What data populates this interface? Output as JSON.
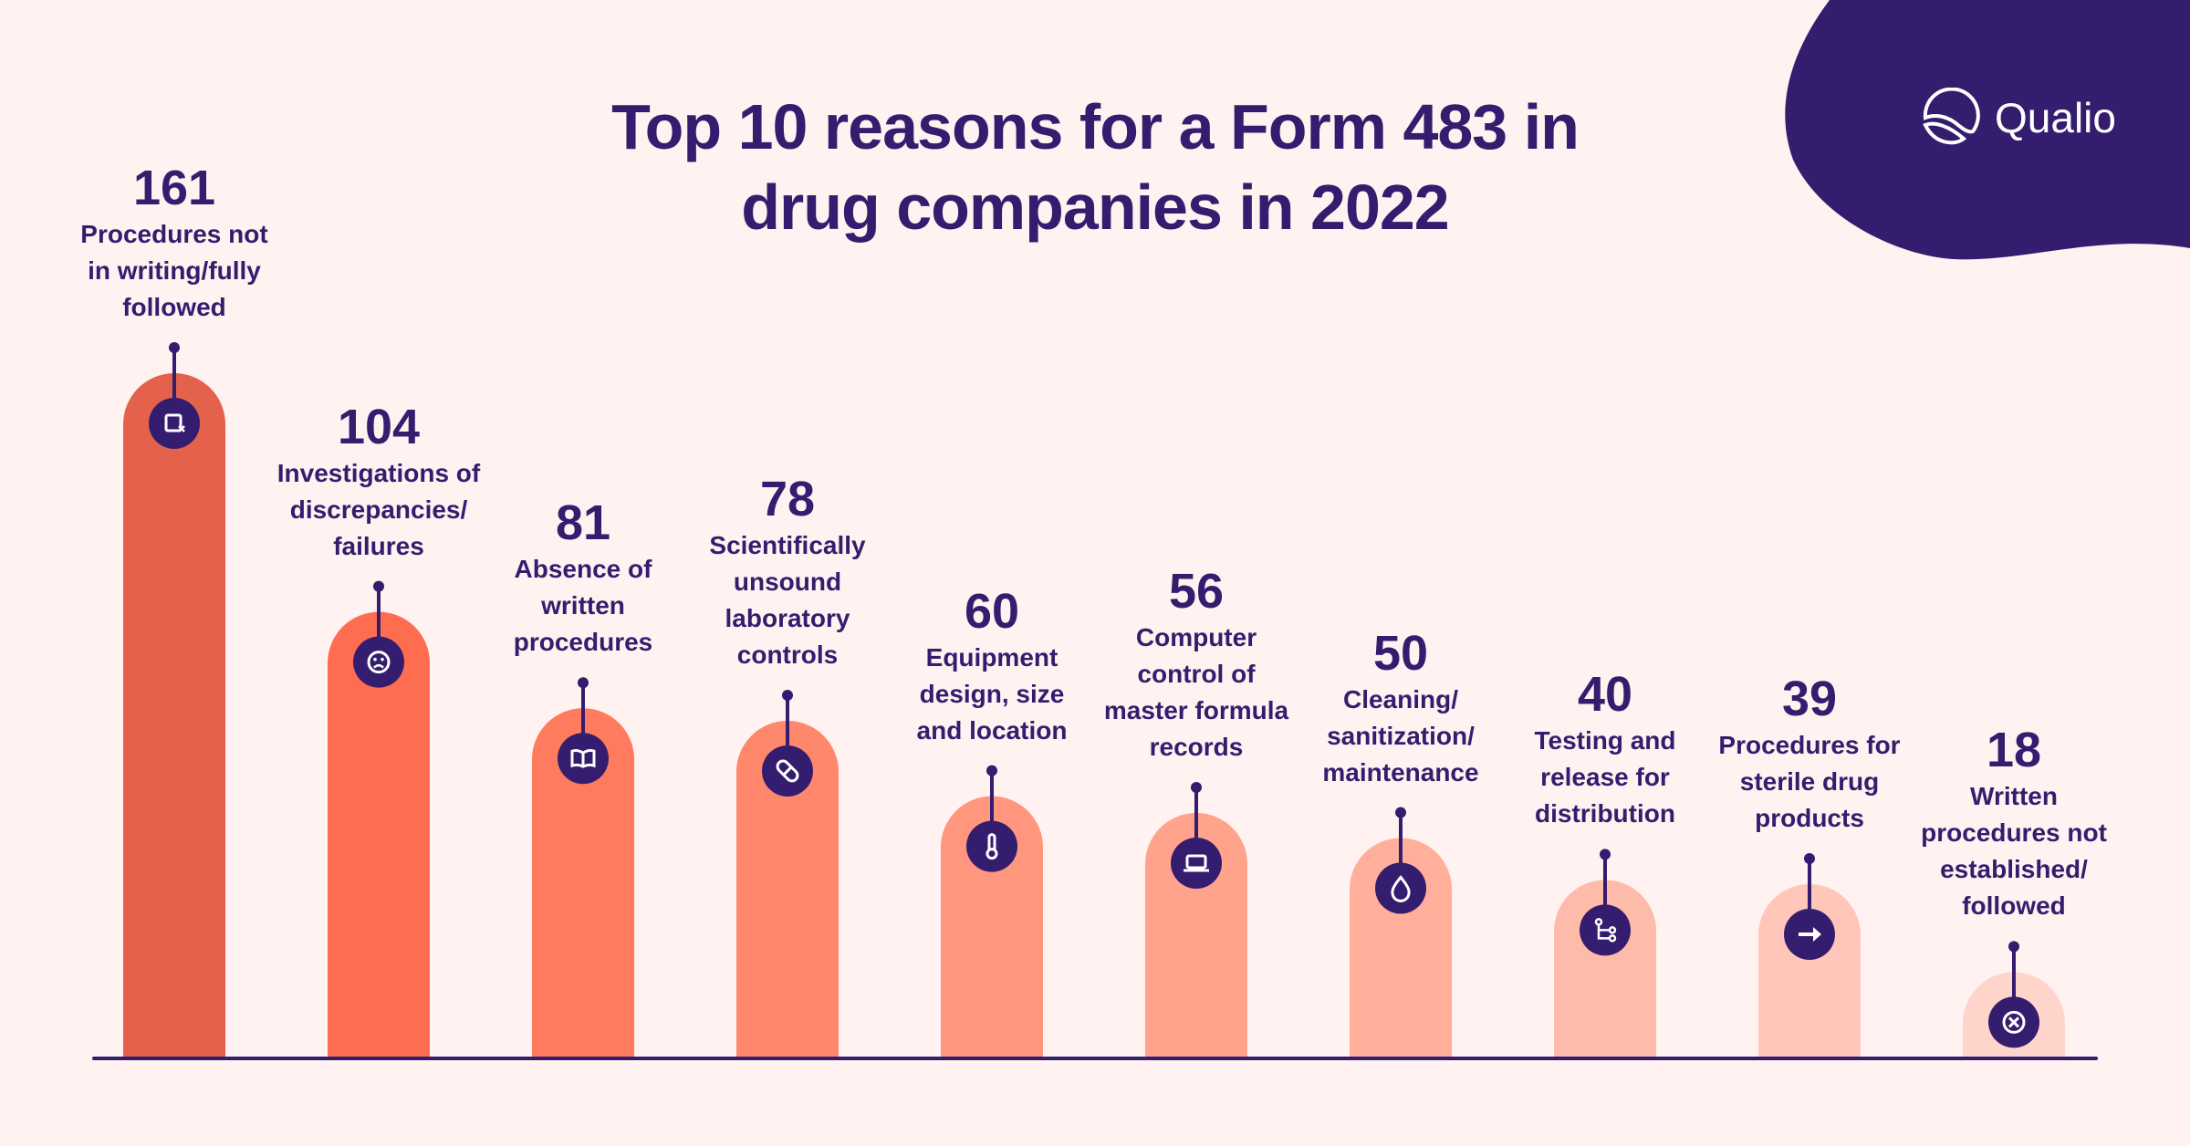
{
  "brand": {
    "name": "Qualio",
    "navy": "#341D6E",
    "background": "#FFF2F0"
  },
  "chart_data": {
    "type": "bar",
    "title": "Top 10 reasons for a Form 483 in drug companies in 2022",
    "title_lines": [
      "Top 10 reasons for a Form 483 in",
      "drug companies in 2022"
    ],
    "xlabel": "",
    "ylabel": "",
    "ylim": [
      0,
      161
    ],
    "grid": false,
    "categories": [
      "Procedures not in writing/fully followed",
      "Investigations of discrepancies/ failures",
      "Absence of written procedures",
      "Scientifically unsound laboratory controls",
      "Equipment design, size and location",
      "Computer control of master formula records",
      "Cleaning/ sanitization/ maintenance",
      "Testing and release for distribution",
      "Procedures for sterile drug products",
      "Written procedures not established/ followed"
    ],
    "values": [
      161,
      104,
      81,
      78,
      60,
      56,
      50,
      40,
      39,
      18
    ],
    "label_lines": [
      [
        "Procedures not",
        "in writing/fully",
        "followed"
      ],
      [
        "Investigations of",
        "discrepancies/",
        "failures"
      ],
      [
        "Absence of",
        "written",
        "procedures"
      ],
      [
        "Scientifically",
        "unsound",
        "laboratory",
        "controls"
      ],
      [
        "Equipment",
        "design, size",
        "and location"
      ],
      [
        "Computer",
        "control of",
        "master formula",
        "records"
      ],
      [
        "Cleaning/",
        "sanitization/",
        "maintenance"
      ],
      [
        "Testing and",
        "release for",
        "distribution"
      ],
      [
        "Procedures for",
        "sterile drug",
        "products"
      ],
      [
        "Written",
        "procedures not",
        "established/",
        "followed"
      ]
    ],
    "icons": [
      "document-x-icon",
      "sad-face-icon",
      "book-icon",
      "pill-icon",
      "thermometer-icon",
      "laptop-icon",
      "droplet-icon",
      "branch-icon",
      "arrow-right-icon",
      "x-circle-icon"
    ],
    "colors": [
      "#E4624B",
      "#FF6D50",
      "#FF7B5E",
      "#FF886C",
      "#FF967D",
      "#FFA38D",
      "#FFAF9A",
      "#FFBBA9",
      "#FFC6B9",
      "#FFD5CB"
    ]
  }
}
